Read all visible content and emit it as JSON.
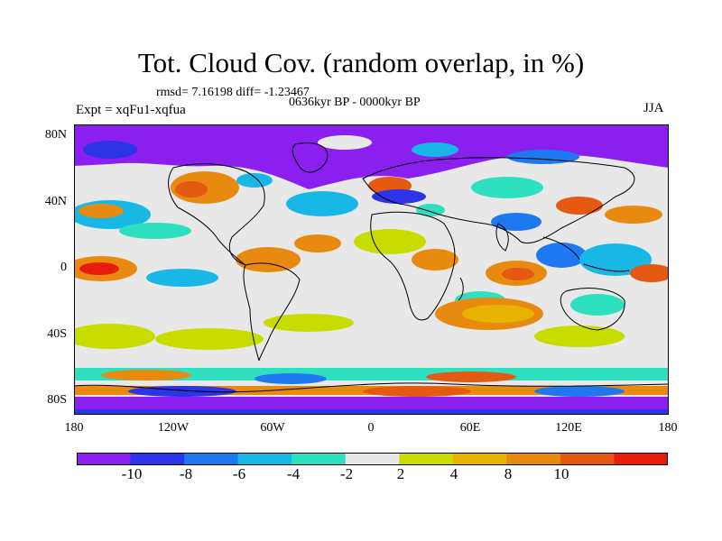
{
  "header": {
    "title": "Tot. Cloud Cov. (random overlap, in %)",
    "stats": "rmsd= 7.16198 diff= -1.23467",
    "period": "0636kyr BP - 0000kyr BP",
    "experiment": "Expt = xqFu1-xqfua",
    "season": "JJA"
  },
  "axes": {
    "lat_ticks": [
      "80N",
      "40N",
      "0",
      "40S",
      "80S"
    ],
    "lon_ticks": [
      "180",
      "120W",
      "60W",
      "0",
      "60E",
      "120E",
      "180"
    ]
  },
  "colorbar": {
    "labels": [
      "-10",
      "-8",
      "-6",
      "-4",
      "-2",
      "2",
      "4",
      "8",
      "10"
    ],
    "colors": [
      "#8a1ff0",
      "#2b34e6",
      "#1e78f0",
      "#19b7e6",
      "#2ee0c0",
      "#e8e8e8",
      "#c8dc00",
      "#e6b400",
      "#e88a10",
      "#e55a12",
      "#e81c0c"
    ]
  },
  "map": {
    "background_color": "#e8e8e8"
  }
}
